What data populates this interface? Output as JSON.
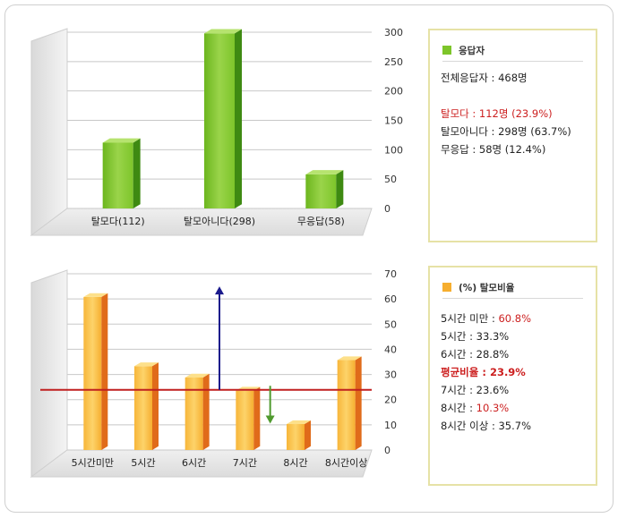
{
  "colors": {
    "green": "#7dc52a",
    "green_dark": "#3e8a12",
    "orange": "#f6ae2f",
    "orange_dark": "#e06b1a",
    "red": "#c01f1f",
    "highlight": "#cc1f1f",
    "navy": "#1a1a8c",
    "arrow_green": "#4f9a2e",
    "legend_border": "#e6e2a6"
  },
  "chart_data": [
    {
      "type": "bar",
      "categories": [
        "탈모다(112)",
        "탈모아니다(298)",
        "무응답(58)"
      ],
      "values": [
        112,
        298,
        58
      ],
      "ylim": [
        0,
        300
      ],
      "yticks": [
        0,
        50,
        100,
        150,
        200,
        250,
        300
      ]
    },
    {
      "type": "bar",
      "categories": [
        "5시간미만",
        "5시간",
        "6시간",
        "7시간",
        "8시간",
        "8시간이상"
      ],
      "values": [
        60.8,
        33.3,
        28.8,
        23.6,
        10.3,
        35.7
      ],
      "ylim": [
        0,
        70
      ],
      "yticks": [
        0,
        10,
        20,
        30,
        40,
        50,
        60,
        70
      ],
      "reference_line": 23.9
    }
  ],
  "legend1": {
    "title": "응답자",
    "total": "전체응답자 : 468명",
    "items": [
      {
        "text": "탈모다 : 112명 (23.9%)",
        "highlight": true
      },
      {
        "text": "탈모아니다 : 298명 (63.7%)",
        "highlight": false
      },
      {
        "text": "무응답 : 58명 (12.4%)",
        "highlight": false
      }
    ]
  },
  "legend2": {
    "title": "(%) 탈모비율",
    "items": [
      {
        "label": "5시간 미만 : ",
        "value": "60.8%",
        "highlight": true
      },
      {
        "label": "5시간 : ",
        "value": "33.3%",
        "highlight": false
      },
      {
        "label": "6시간 : ",
        "value": "28.8%",
        "highlight": false
      },
      {
        "label": "평균비율 : ",
        "value": "23.9%",
        "highlight": true,
        "bold": true
      },
      {
        "label": "7시간 : ",
        "value": "23.6%",
        "highlight": false
      },
      {
        "label": "8시간 : ",
        "value": "10.3%",
        "highlight": true
      },
      {
        "label": "8시간 이상 : ",
        "value": "35.7%",
        "highlight": false
      }
    ]
  }
}
